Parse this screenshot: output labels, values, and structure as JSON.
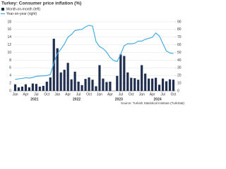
{
  "chart_data": {
    "type": "bar_line",
    "title": "Turkey: Consumer price inflation (%)",
    "source": "Source: Turkish Statistical Institute (TurkStat)",
    "categories": [
      "Jan",
      null,
      null,
      "Apr",
      null,
      null,
      "Jul",
      null,
      null,
      "Oct",
      null,
      null,
      "Jan",
      null,
      null,
      "Apr",
      null,
      null,
      "Jul",
      null,
      null,
      "Oct",
      null,
      null,
      "Jan",
      null,
      null,
      "Apr",
      null,
      null,
      "Jul",
      null,
      null,
      "Oct",
      null,
      null,
      "Jan",
      null,
      null,
      "Apr",
      null,
      null,
      "Jul",
      null,
      null,
      "Oct"
    ],
    "years": [
      "2021",
      "2022",
      "2023",
      "2024"
    ],
    "series": [
      {
        "name": "Month-on-month (left)",
        "type": "bar",
        "color": "#1f2d4e",
        "values": [
          1.7,
          0.9,
          1.1,
          1.7,
          0.9,
          1.9,
          1.8,
          1.1,
          1.3,
          2.4,
          3.5,
          13.6,
          11.1,
          4.8,
          5.5,
          7.3,
          3.0,
          5.0,
          2.4,
          1.5,
          3.1,
          3.5,
          2.9,
          1.2,
          6.7,
          3.2,
          2.3,
          2.4,
          0.0,
          3.9,
          9.5,
          9.1,
          4.8,
          3.4,
          3.3,
          2.9,
          6.7,
          4.5,
          3.2,
          3.2,
          3.4,
          1.6,
          3.2,
          2.5,
          3.0,
          2.9
        ]
      },
      {
        "name": "Year-on-year (right)",
        "type": "line",
        "axis": "y2",
        "color": "#3aa7dc",
        "values": [
          15.0,
          15.6,
          16.2,
          17.1,
          16.6,
          17.5,
          19.0,
          19.3,
          19.6,
          19.9,
          21.3,
          36.1,
          48.7,
          54.4,
          61.1,
          70.0,
          73.5,
          78.6,
          79.6,
          80.2,
          83.5,
          85.5,
          84.4,
          64.3,
          57.7,
          55.2,
          50.5,
          43.7,
          39.6,
          38.2,
          47.8,
          58.9,
          61.5,
          61.4,
          62.0,
          64.8,
          64.9,
          67.1,
          68.5,
          69.8,
          75.5,
          71.6,
          61.8,
          52.0,
          49.4,
          48.6
        ]
      }
    ],
    "ylim": [
      0,
      18
    ],
    "yticks": [
      0,
      2,
      4,
      6,
      8,
      10,
      12,
      14,
      16,
      18
    ],
    "y2lim": [
      0,
      90
    ],
    "y2ticks": [
      0,
      10,
      20,
      30,
      40,
      50,
      60,
      70,
      80,
      90
    ],
    "grid": true
  }
}
